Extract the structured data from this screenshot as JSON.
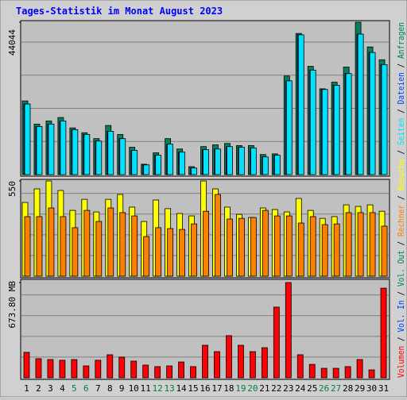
{
  "chart_data": [
    {
      "type": "bar",
      "title": "Tages-Statistik im Monat August 2023",
      "ylim": [
        0,
        44044
      ],
      "yticks": [
        44044
      ],
      "grid": true,
      "series": [
        {
          "name": "Anfragen",
          "color": "#00805c",
          "values": [
            21300,
            14600,
            15500,
            16500,
            13500,
            12100,
            10400,
            14200,
            11600,
            7900,
            3000,
            6300,
            10400,
            7400,
            2300,
            8100,
            8600,
            9000,
            8400,
            8400,
            5800,
            6000,
            28500,
            40800,
            31300,
            24800,
            26700,
            31100,
            44044,
            36900,
            33200
          ]
        },
        {
          "name": "Dateien",
          "color": "#0040ff",
          "values": [
            20400,
            13900,
            14600,
            15500,
            13000,
            11600,
            9700,
            12500,
            10400,
            7000,
            2800,
            5600,
            8800,
            6500,
            1900,
            7200,
            7400,
            8100,
            7900,
            7700,
            5100,
            5600,
            27100,
            40400,
            30200,
            24600,
            25800,
            29200,
            40600,
            35300,
            31800
          ]
        },
        {
          "name": "Seiten",
          "color": "#00e0ff",
          "values": [
            20400,
            13900,
            14600,
            15500,
            13000,
            11600,
            9700,
            12500,
            10400,
            7000,
            2800,
            5600,
            8800,
            6500,
            1900,
            7200,
            7400,
            8100,
            7900,
            7700,
            5100,
            5600,
            27100,
            40400,
            30200,
            24600,
            25800,
            29200,
            40600,
            35300,
            31800
          ]
        }
      ]
    },
    {
      "type": "bar",
      "ylim": [
        0,
        550
      ],
      "yticks": [
        550
      ],
      "grid": true,
      "series": [
        {
          "name": "Besuche",
          "color": "#ffff00",
          "values": [
            426,
            504,
            550,
            495,
            380,
            444,
            371,
            444,
            472,
            399,
            316,
            440,
            390,
            362,
            348,
            550,
            504,
            399,
            357,
            339,
            394,
            385,
            371,
            449,
            380,
            334,
            344,
            412,
            403,
            412,
            375
          ]
        },
        {
          "name": "Rechner",
          "color": "#ff8000",
          "values": [
            344,
            344,
            394,
            344,
            280,
            380,
            316,
            394,
            367,
            348,
            229,
            280,
            275,
            270,
            302,
            375,
            472,
            330,
            334,
            339,
            380,
            348,
            348,
            307,
            344,
            298,
            302,
            367,
            367,
            367,
            289
          ]
        }
      ]
    },
    {
      "type": "bar",
      "ylim": [
        0,
        673.8
      ],
      "yticks": [
        {
          "value": 673.8,
          "label": "673.80 MB"
        }
      ],
      "grid": true,
      "categories": [
        "1",
        "2",
        "3",
        "4",
        "5",
        "6",
        "7",
        "8",
        "9",
        "10",
        "11",
        "12",
        "13",
        "14",
        "15",
        "16",
        "17",
        "18",
        "19",
        "20",
        "21",
        "22",
        "23",
        "24",
        "25",
        "26",
        "27",
        "28",
        "29",
        "30",
        "31"
      ],
      "category_colors": [
        "#000000",
        "#000000",
        "#000000",
        "#000000",
        "#008040",
        "#008040",
        "#000000",
        "#000000",
        "#000000",
        "#000000",
        "#000000",
        "#008040",
        "#008040",
        "#000000",
        "#000000",
        "#000000",
        "#000000",
        "#000000",
        "#008040",
        "#008040",
        "#000000",
        "#000000",
        "#000000",
        "#000000",
        "#000000",
        "#008040",
        "#008040",
        "#000000",
        "#000000",
        "#000000",
        "#000000"
      ],
      "series": [
        {
          "name": "Volumen",
          "color": "#ff0000",
          "values": [
            180,
            135,
            129,
            124,
            129,
            84,
            124,
            163,
            146,
            118,
            90,
            79,
            84,
            112,
            79,
            230,
            185,
            298,
            230,
            185,
            213,
            500,
            673.8,
            163,
            95,
            67,
            67,
            79,
            129,
            56,
            634
          ]
        }
      ],
      "extra_legend": [
        {
          "name": "Vol. In",
          "color": "#0040ff"
        },
        {
          "name": "Vol. Out",
          "color": "#00805c"
        }
      ],
      "legend_separator": " / "
    }
  ]
}
